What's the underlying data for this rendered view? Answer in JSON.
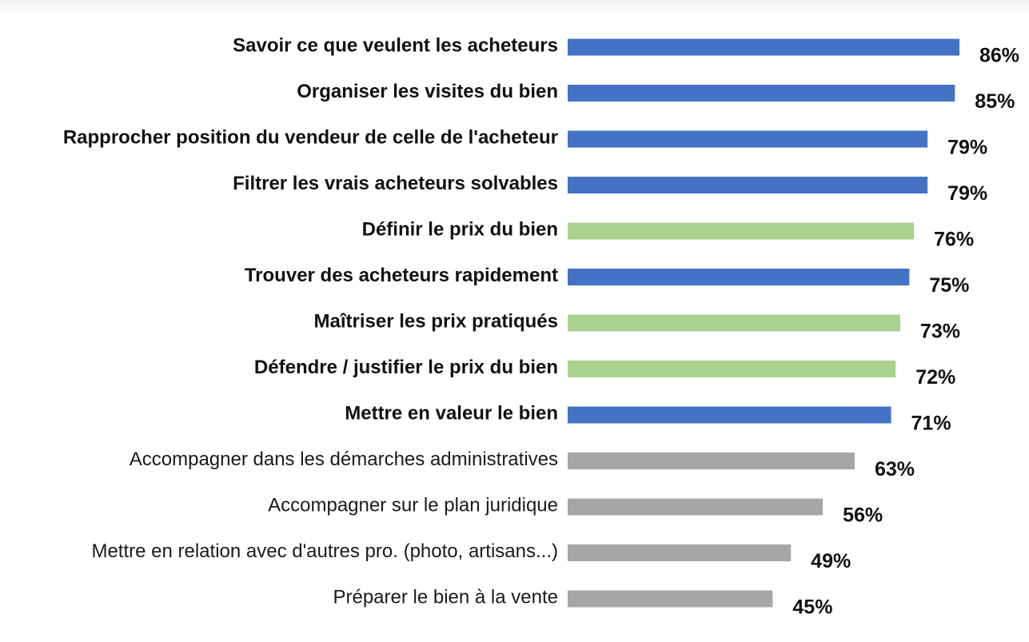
{
  "chart_data": {
    "type": "bar",
    "orientation": "horizontal",
    "title": "",
    "xlabel": "",
    "ylabel": "",
    "xlim": [
      0,
      86
    ],
    "grid": false,
    "legend": "none",
    "categories": [
      "Savoir ce que veulent les acheteurs",
      "Organiser les visites du bien",
      "Rapprocher position du vendeur de celle de l'acheteur",
      "Filtrer les vrais acheteurs solvables",
      "Définir le prix du bien",
      "Trouver des acheteurs rapidement",
      "Maîtriser les prix pratiqués",
      "Défendre / justifier le prix du bien",
      "Mettre en valeur le bien",
      "Accompagner dans les démarches administratives",
      "Accompagner sur le plan juridique",
      "Mettre en relation avec d'autres pro. (photo, artisans...)",
      "Préparer le bien à la vente"
    ],
    "values": [
      86,
      85,
      79,
      79,
      76,
      75,
      73,
      72,
      71,
      63,
      56,
      49,
      45
    ],
    "value_labels": [
      "86%",
      "85%",
      "79%",
      "79%",
      "76%",
      "75%",
      "73%",
      "72%",
      "71%",
      "63%",
      "56%",
      "49%",
      "45%"
    ],
    "groups": [
      "blue",
      "blue",
      "blue",
      "blue",
      "green",
      "blue",
      "green",
      "green",
      "blue",
      "gray",
      "gray",
      "gray",
      "gray"
    ],
    "bold_labels": [
      true,
      true,
      true,
      true,
      true,
      true,
      true,
      true,
      true,
      false,
      false,
      false,
      false
    ],
    "colors": {
      "blue": "#4472c4",
      "green": "#a9d18e",
      "gray": "#a6a6a6"
    }
  }
}
